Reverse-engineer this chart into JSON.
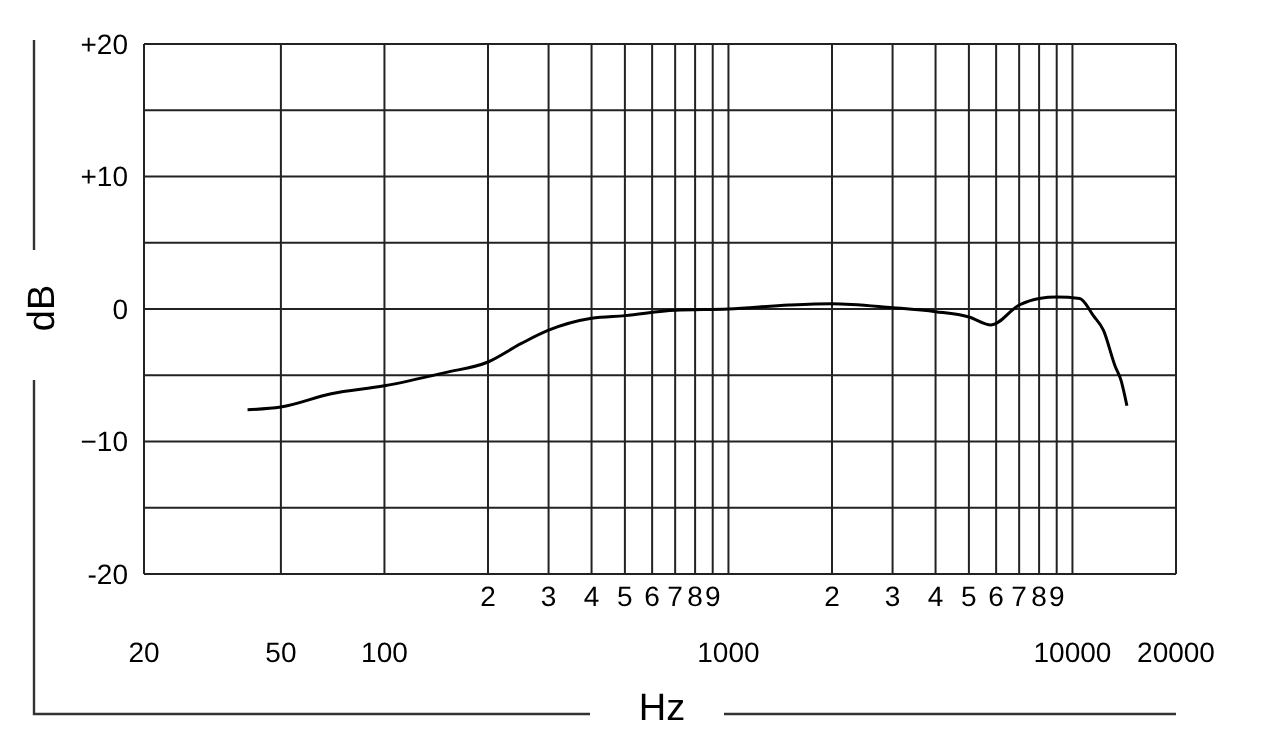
{
  "chart_data": {
    "type": "line",
    "xlabel": "Hz",
    "ylabel": "dB",
    "x": [
      40,
      50,
      70,
      100,
      150,
      200,
      250,
      300,
      400,
      500,
      700,
      1000,
      1500,
      2000,
      3000,
      4000,
      5000,
      5800,
      7000,
      8000,
      9000,
      10500,
      11500,
      12300,
      13300,
      13850,
      14400
    ],
    "series": [
      {
        "color": "#000000",
        "values": [
          -7.6,
          -7.4,
          -6.4,
          -5.8,
          -4.8,
          -4.0,
          -2.6,
          -1.6,
          -0.7,
          -0.5,
          -0.1,
          0,
          0.3,
          0.4,
          0.1,
          -0.2,
          -0.6,
          -1.2,
          0.3,
          0.8,
          0.9,
          0.8,
          -0.5,
          -1.6,
          -4.3,
          -5.4,
          -7.3
        ]
      }
    ],
    "log": "x",
    "grid": true,
    "xlim": [
      20,
      20000
    ],
    "xticks": [
      20,
      50,
      100,
      {
        "value": 200,
        "label": null
      },
      {
        "value": 300,
        "label": null
      },
      {
        "value": 400,
        "label": null
      },
      {
        "value": 500,
        "label": null
      },
      {
        "value": 600,
        "label": null
      },
      {
        "value": 700,
        "label": null
      },
      {
        "value": 800,
        "label": null
      },
      {
        "value": 900,
        "label": null
      },
      1000,
      {
        "value": 2000,
        "label": null
      },
      {
        "value": 3000,
        "label": null
      },
      {
        "value": 4000,
        "label": null
      },
      {
        "value": 5000,
        "label": null
      },
      {
        "value": 6000,
        "label": null
      },
      {
        "value": 7000,
        "label": null
      },
      {
        "value": 8000,
        "label": null
      },
      {
        "value": 9000,
        "label": null
      },
      10000,
      20000
    ],
    "annotations": [
      "2",
      "3",
      "4",
      "5",
      "6",
      "7",
      "8",
      "9",
      "2",
      "3",
      "4",
      "5",
      "6",
      "7",
      "8",
      "9"
    ],
    "ylim": [
      -20,
      20
    ],
    "yticks": [
      {
        "value": -20,
        "label": "-20"
      },
      {
        "value": -15,
        "label": null
      },
      {
        "value": -10,
        "label": "−10"
      },
      {
        "value": -5,
        "label": null
      },
      0,
      {
        "value": 5,
        "label": null
      },
      {
        "value": 10,
        "label": "+10"
      },
      {
        "value": 15,
        "label": null
      },
      {
        "value": 20,
        "label": "+20"
      }
    ]
  }
}
